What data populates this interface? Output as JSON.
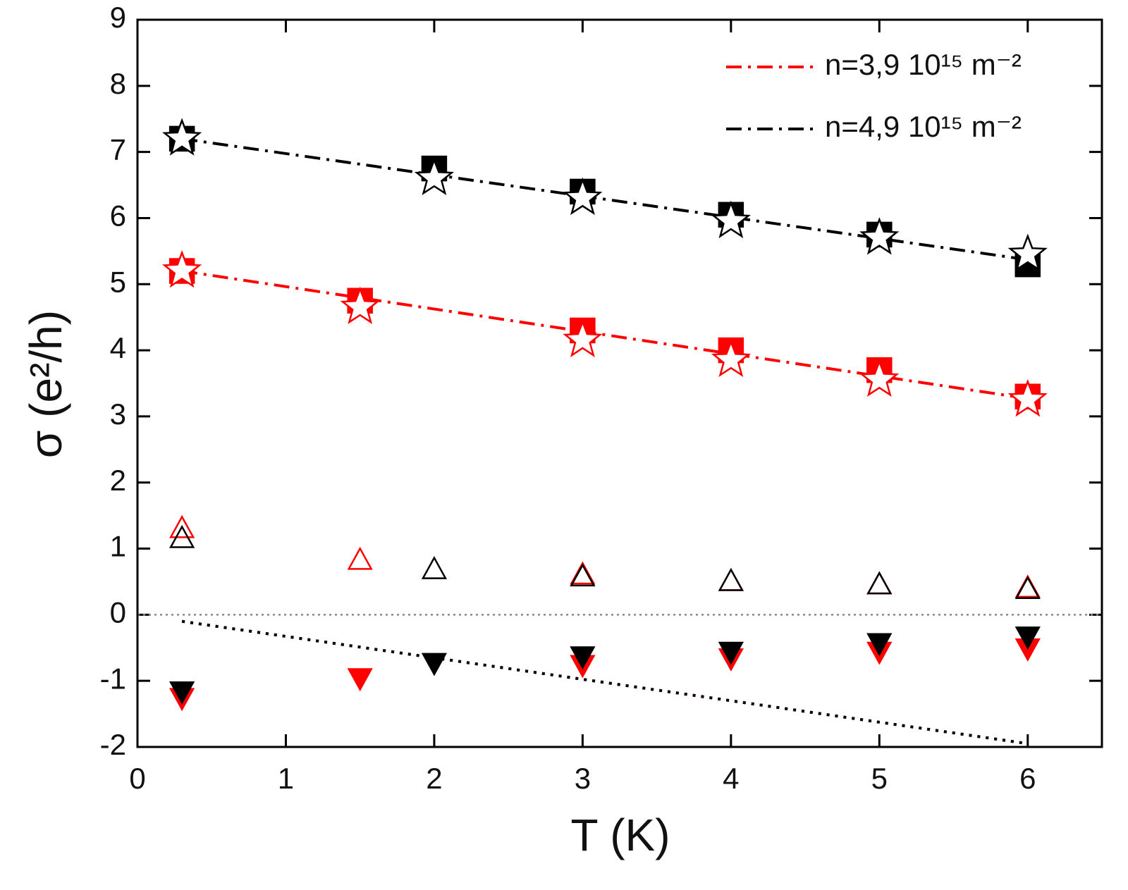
{
  "chart_data": {
    "type": "scatter",
    "xlabel": "T (K)",
    "ylabel": "σ (e²/h)",
    "xlim": [
      0,
      6.5
    ],
    "ylim": [
      -2,
      9
    ],
    "xticks": [
      0,
      1,
      2,
      3,
      4,
      5,
      6
    ],
    "yticks": [
      -2,
      -1,
      0,
      1,
      2,
      3,
      4,
      5,
      6,
      7,
      8,
      9
    ],
    "zero_line": true,
    "legend": "upper right",
    "series": [
      {
        "name": "n=3,9 10¹⁵ m⁻²",
        "color": "#ff0000",
        "style": "dashdot",
        "x": [
          0.3,
          6
        ],
        "values": [
          5.2,
          3.27
        ]
      },
      {
        "name": "n=4,9 10¹⁵ m⁻²",
        "color": "#000000",
        "style": "dashdot",
        "x": [
          0.3,
          6
        ],
        "values": [
          7.2,
          5.37
        ]
      },
      {
        "color": "#ff0000",
        "style": "dotted",
        "x": [
          0.3,
          6
        ],
        "values": [
          -0.1,
          -1.95
        ]
      },
      {
        "color": "#000000",
        "style": "dotted",
        "x": [
          0.3,
          6
        ],
        "values": [
          -0.1,
          -1.95
        ]
      },
      {
        "color": "#ff0000",
        "marker": "square",
        "filled": true,
        "x": [
          0.3,
          1.5,
          3,
          4,
          5,
          6
        ],
        "values": [
          5.2,
          4.75,
          4.3,
          4.0,
          3.7,
          3.3
        ]
      },
      {
        "color": "#ff0000",
        "marker": "star",
        "filled": false,
        "x": [
          0.3,
          1.5,
          3,
          4,
          5,
          6
        ],
        "values": [
          5.2,
          4.65,
          4.15,
          3.85,
          3.55,
          3.25
        ]
      },
      {
        "color": "#000000",
        "marker": "square",
        "filled": true,
        "x": [
          0.3,
          2,
          3,
          4,
          5,
          6
        ],
        "values": [
          7.2,
          6.75,
          6.4,
          6.05,
          5.75,
          5.3
        ]
      },
      {
        "color": "#000000",
        "marker": "star",
        "filled": false,
        "x": [
          0.3,
          2,
          3,
          4,
          5,
          6
        ],
        "values": [
          7.2,
          6.6,
          6.3,
          5.95,
          5.7,
          5.45
        ]
      },
      {
        "color": "#ff0000",
        "marker": "triangle-up",
        "filled": false,
        "x": [
          0.3,
          1.5,
          3,
          4,
          5,
          6
        ],
        "values": [
          1.3,
          0.82,
          0.6,
          0.5,
          0.45,
          0.4
        ]
      },
      {
        "color": "#000000",
        "marker": "triangle-up",
        "filled": false,
        "x": [
          0.3,
          2,
          3,
          4,
          5,
          6
        ],
        "values": [
          1.15,
          0.68,
          0.57,
          0.5,
          0.45,
          0.38
        ]
      },
      {
        "color": "#ff0000",
        "marker": "triangle-down",
        "filled": true,
        "x": [
          0.3,
          1.5,
          3,
          4,
          5,
          6
        ],
        "values": [
          -1.25,
          -0.95,
          -0.75,
          -0.65,
          -0.55,
          -0.5
        ]
      },
      {
        "color": "#000000",
        "marker": "triangle-down",
        "filled": true,
        "x": [
          0.3,
          2,
          3,
          4,
          5,
          6
        ],
        "values": [
          -1.15,
          -0.72,
          -0.62,
          -0.55,
          -0.42,
          -0.32
        ]
      }
    ]
  }
}
